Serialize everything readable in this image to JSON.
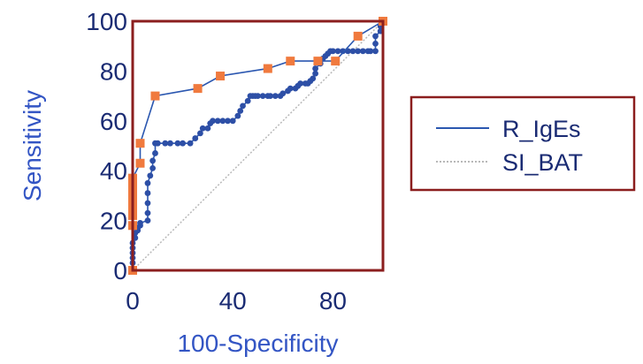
{
  "chart_data": {
    "type": "line",
    "title": "",
    "xlabel": "100-Specificity",
    "ylabel": "Sensitivity",
    "xlim": [
      0,
      100
    ],
    "ylim": [
      0,
      100
    ],
    "x_ticks": [
      "0",
      "40",
      "80"
    ],
    "y_ticks": [
      "0",
      "20",
      "40",
      "60",
      "80",
      "100"
    ],
    "grid": false,
    "legend_position": "right",
    "legend": [
      "R_IgEs",
      "SI_BAT"
    ],
    "reference_line": {
      "x": [
        0,
        100
      ],
      "y": [
        0,
        100
      ],
      "style": "dotted",
      "color": "#b8b8b8"
    },
    "series": [
      {
        "name": "R_IgEs",
        "color": "#2b57b0",
        "marker": "square",
        "marker_color": "#f07a3e",
        "x": [
          0,
          0,
          0,
          0,
          0,
          0,
          0,
          0,
          3,
          3,
          9,
          26,
          35,
          54,
          63,
          74,
          81,
          90,
          100
        ],
        "y": [
          0,
          18,
          22,
          25,
          28,
          31,
          34,
          37,
          43,
          51,
          70,
          73,
          78,
          81,
          84,
          84,
          84,
          94,
          100
        ]
      },
      {
        "name": "SI_BAT",
        "color": "#2b57b0",
        "marker": "circle",
        "marker_color": "#2d4fa6",
        "x": [
          0,
          0,
          0,
          0,
          0,
          0,
          1,
          1,
          2,
          2,
          3,
          3,
          6,
          6,
          6,
          6,
          6,
          7,
          8,
          8,
          9,
          9,
          10,
          13,
          15,
          18,
          20,
          23,
          25,
          27,
          28,
          30,
          31,
          32,
          34,
          36,
          38,
          40,
          42,
          43,
          44,
          46,
          47,
          48,
          49,
          50,
          52,
          54,
          55,
          57,
          59,
          60,
          62,
          63,
          65,
          66,
          67,
          69,
          70,
          71,
          72,
          73,
          73,
          75,
          76,
          77,
          78,
          79,
          80,
          82,
          84,
          86,
          88,
          90,
          92,
          94,
          95,
          97,
          97,
          97,
          99,
          99,
          100
        ],
        "y": [
          0,
          3,
          5,
          7,
          9,
          11,
          13,
          15,
          16,
          17,
          18,
          19,
          20,
          23,
          27,
          31,
          35,
          38,
          41,
          44,
          47,
          51,
          51,
          51,
          51,
          51,
          51,
          51,
          53,
          55,
          57,
          57,
          59,
          60,
          60,
          60,
          60,
          60,
          62,
          64,
          66,
          68,
          70,
          70,
          70,
          70,
          70,
          70,
          70,
          70,
          70,
          71,
          72,
          73,
          73,
          74,
          75,
          75,
          75,
          76,
          77,
          79,
          81,
          83,
          85,
          86,
          87,
          88,
          88,
          88,
          88,
          88,
          88,
          88,
          88,
          88,
          88,
          88,
          91,
          94,
          96,
          98,
          100
        ]
      }
    ]
  }
}
